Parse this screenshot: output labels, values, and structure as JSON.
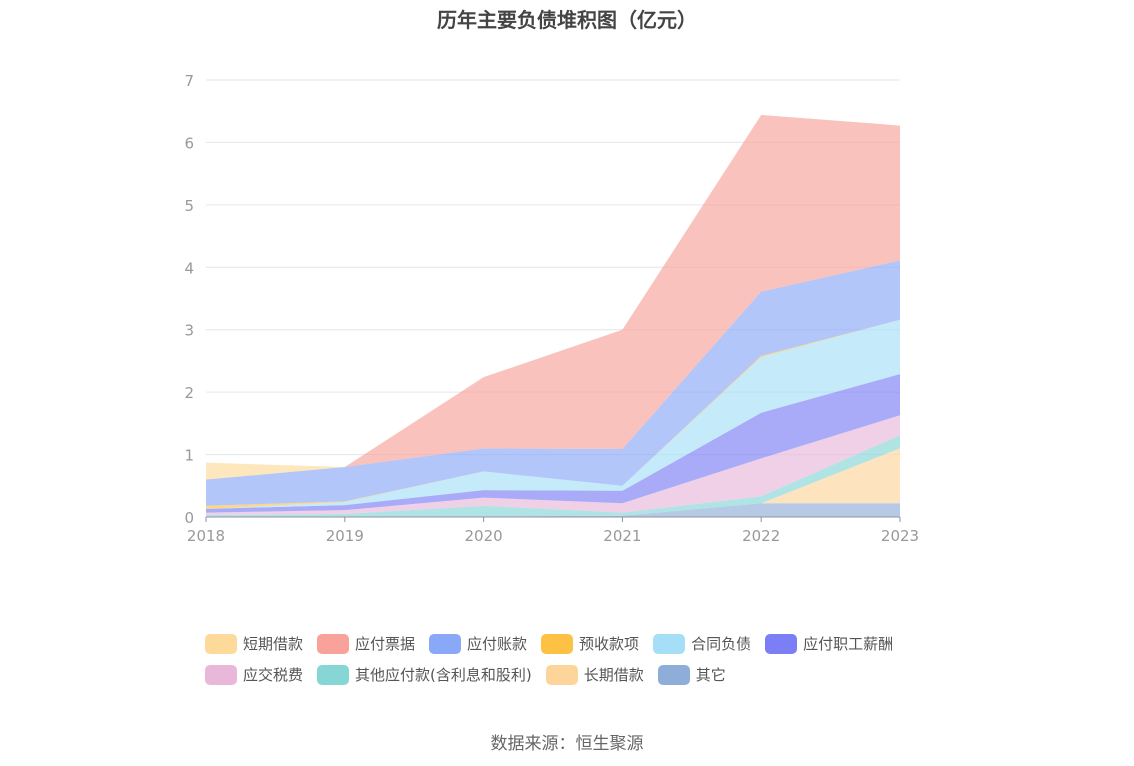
{
  "title": "历年主要负债堆积图（亿元）",
  "source": "数据来源：恒生聚源",
  "chart_data": {
    "type": "area",
    "stacked": true,
    "title": "历年主要负债堆积图（亿元）",
    "categories": [
      "2018",
      "2019",
      "2020",
      "2021",
      "2022",
      "2023"
    ],
    "ylim": [
      0,
      7
    ],
    "yticks": [
      "0",
      "1",
      "2",
      "3",
      "4",
      "5",
      "6",
      "7"
    ],
    "grid": true,
    "legend_position": "bottom",
    "series": [
      {
        "name": "短期借款",
        "color": "#fdd99a",
        "values": [
          0.27,
          0,
          0,
          0,
          0,
          0
        ]
      },
      {
        "name": "应付票据",
        "color": "#f8a29a",
        "values": [
          0,
          0,
          1.14,
          1.91,
          2.83,
          2.16
        ]
      },
      {
        "name": "应付账款",
        "color": "#8aa8f8",
        "values": [
          0.42,
          0.55,
          0.37,
          0.59,
          1.03,
          0.95
        ]
      },
      {
        "name": "预收款项",
        "color": "#fdc143",
        "values": [
          0.05,
          0.01,
          0,
          0,
          0.02,
          0
        ]
      },
      {
        "name": "合同负债",
        "color": "#a6def8",
        "values": [
          0,
          0.05,
          0.3,
          0.08,
          0.89,
          0.87
        ]
      },
      {
        "name": "应付职工薪酬",
        "color": "#7b7ef5",
        "values": [
          0.06,
          0.08,
          0.12,
          0.2,
          0.73,
          0.66
        ]
      },
      {
        "name": "应交税费",
        "color": "#e8b7d9",
        "values": [
          0.04,
          0.06,
          0.13,
          0.15,
          0.61,
          0.32
        ]
      },
      {
        "name": "其他应付款(含利息和股利)",
        "color": "#86d6d6",
        "values": [
          0.02,
          0.04,
          0.17,
          0.05,
          0.11,
          0.21
        ]
      },
      {
        "name": "长期借款",
        "color": "#fdd59b",
        "values": [
          0,
          0,
          0,
          0,
          0,
          0.88
        ]
      },
      {
        "name": "其它",
        "color": "#8fadd9",
        "values": [
          0.01,
          0.01,
          0.01,
          0.02,
          0.22,
          0.22
        ]
      }
    ]
  }
}
